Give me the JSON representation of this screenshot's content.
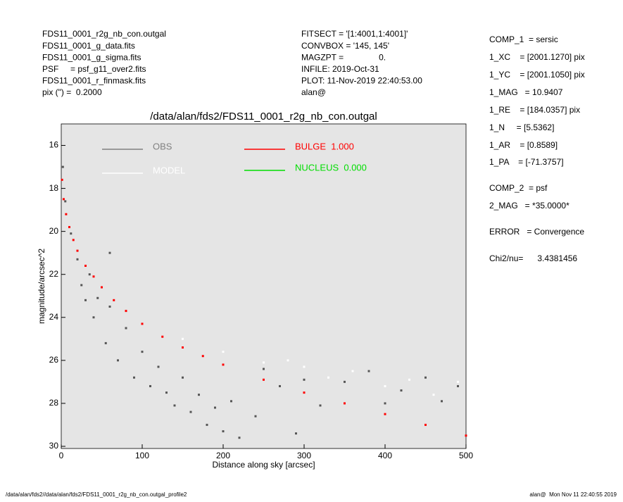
{
  "header": {
    "left": [
      "FDS11_0001_r2g_nb_con.outgal",
      "FDS11_0001_g_data.fits",
      "FDS11_0001_g_sigma.fits",
      "PSF     = psf_g11_over2.fits",
      "FDS11_0001_r_finmask.fits",
      "pix (\") =  0.2000"
    ],
    "center": [
      "FITSECT = '[1:4001,1:4001]'",
      "CONVBOX = '145, 145'",
      "MAGZPT =               0.",
      "INFILE: 2019-Oct-31",
      "PLOT: 11-Nov-2019 22:40:53.00",
      "alan@"
    ]
  },
  "params": [
    "COMP_1  = sersic",
    "1_XC    = [2001.1270] pix",
    "1_YC    = [2001.1050] pix",
    "1_MAG   = 10.9407",
    "1_RE    = [184.0357] pix",
    "1_N     = [5.5362]",
    "1_AR    = [0.8589]",
    "1_PA    = [-71.3757]",
    "COMP_2  = psf",
    "2_MAG   = *35.0000*",
    "ERROR   = Convergence",
    "Chi2/nu=      3.4381456"
  ],
  "footer": {
    "left": "/data/alan/fds2//data/alan/fds2/FDS11_0001_r2g_nb_con.outgal_profile2",
    "right": "alan@  Mon Nov 11 22:40:55 2019"
  },
  "chart_data": {
    "type": "scatter",
    "title": "/data/alan/fds2/FDS11_0001_r2g_nb_con.outgal",
    "x_label": "Distance along sky [arcsec]",
    "y_label": "magnitude/arcsec^2",
    "xlim": [
      0,
      500
    ],
    "ylim": [
      30.1,
      15
    ],
    "xticks": [
      0,
      100,
      200,
      300,
      400,
      500
    ],
    "yticks": [
      16,
      18,
      20,
      22,
      24,
      26,
      28,
      30
    ],
    "background": "#e5e5e5",
    "series": [
      {
        "name": "OBS",
        "color": "#555555",
        "legend_color": "#808080",
        "x": [
          2,
          5,
          12,
          20,
          25,
          30,
          35,
          40,
          45,
          55,
          60,
          60,
          70,
          80,
          90,
          100,
          110,
          120,
          130,
          140,
          150,
          160,
          170,
          180,
          190,
          200,
          210,
          220,
          240,
          250,
          270,
          290,
          300,
          320,
          350,
          380,
          400,
          420,
          450,
          470,
          490
        ],
        "values": [
          17.0,
          18.6,
          20.1,
          21.3,
          22.5,
          23.2,
          22.0,
          24.0,
          23.1,
          25.2,
          23.5,
          21.0,
          26.0,
          24.5,
          26.8,
          25.6,
          27.2,
          26.3,
          27.5,
          28.1,
          26.8,
          28.4,
          27.6,
          29.0,
          28.2,
          29.3,
          27.9,
          29.6,
          28.6,
          26.4,
          27.2,
          29.4,
          26.9,
          28.1,
          27.0,
          26.5,
          28.0,
          27.4,
          26.8,
          27.9,
          27.2
        ]
      },
      {
        "name": "MODEL",
        "color": "#ffffff",
        "legend_color": "#ffffff",
        "x": [
          150,
          200,
          250,
          280,
          300,
          330,
          360,
          400,
          430,
          460,
          490
        ],
        "values": [
          25.0,
          25.6,
          26.1,
          26.0,
          26.3,
          26.8,
          26.5,
          27.2,
          26.9,
          27.6,
          27.0
        ]
      },
      {
        "name": "BULGE  1.000",
        "color": "#ff0000",
        "legend_color": "#ff0000",
        "x": [
          1,
          3,
          6,
          10,
          15,
          20,
          30,
          40,
          50,
          65,
          80,
          100,
          125,
          150,
          175,
          200,
          250,
          300,
          350,
          400,
          450,
          500
        ],
        "values": [
          17.6,
          18.5,
          19.2,
          19.8,
          20.4,
          20.9,
          21.6,
          22.1,
          22.6,
          23.2,
          23.7,
          24.3,
          24.9,
          25.4,
          25.8,
          26.2,
          26.9,
          27.5,
          28.0,
          28.5,
          29.0,
          29.5
        ]
      },
      {
        "name": "NUCLEUS  0.000",
        "color": "#00dd00",
        "legend_color": "#00dd00",
        "x": [],
        "values": []
      }
    ]
  }
}
